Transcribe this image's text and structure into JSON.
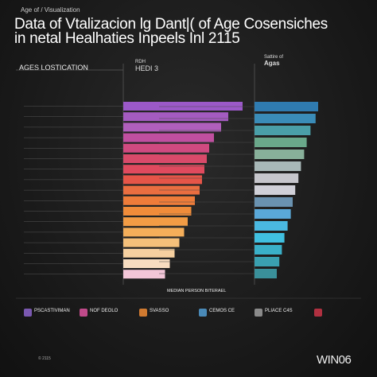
{
  "chart_data": {
    "type": "bar",
    "subtitle_small": "Age of / Visualization",
    "title_line1": "Data of Vtalizacion lg Dant|( of Age Cosensiches",
    "title_line2": "in netal Healhaties Inpeels Inl 2115",
    "left_header": "AGES  LOSTICATION",
    "mid_header_small": "RDH",
    "mid_header_title": "HEDI 3",
    "right_header_small": "Sattire of",
    "right_header_title": "Agas",
    "xlabel": "MEDIAN PERSON BITERAEL",
    "footer": "© 2115",
    "logo": "WIN06",
    "left_values": [
      100,
      88,
      82,
      76,
      72,
      70,
      68,
      66,
      64,
      60,
      57,
      54,
      51,
      47,
      43,
      39,
      35
    ],
    "right_values": [
      100,
      96,
      88,
      82,
      78,
      73,
      69,
      64,
      60,
      57,
      52,
      47,
      43,
      39,
      35
    ],
    "left_colors": [
      "#9b59c8",
      "#a45bc0",
      "#b05fbc",
      "#c04fa0",
      "#d04a80",
      "#d94a6a",
      "#e04a5e",
      "#e65548",
      "#ea6e40",
      "#ee7c3a",
      "#f08c3a",
      "#f29c45",
      "#f4ae5a",
      "#f5c07a",
      "#f6d0a0",
      "#f7dcc0",
      "#f3c6d8"
    ],
    "right_colors": [
      "#2f7bb0",
      "#3a8cb8",
      "#4a9fa8",
      "#6aa88a",
      "#88b09a",
      "#a8b8b8",
      "#c6c6cc",
      "#d0d0d8",
      "#6a92b0",
      "#5aa8d8",
      "#4ab8e0",
      "#40c0e0",
      "#3ab0c8",
      "#3aa0b0",
      "#3a909a"
    ],
    "legend": [
      {
        "title": "",
        "label": "PSCASTIVIMAN",
        "color": "#7a58b0"
      },
      {
        "title": "",
        "label": "NOF DEOLO",
        "color": "#c04a8a"
      },
      {
        "title": "",
        "label": "SVASSO",
        "color": "#d07a30"
      },
      {
        "title": "",
        "label": "CEMOS CE",
        "color": "#4a8ab8"
      },
      {
        "title": "",
        "label": "PLIACE C4S",
        "color": "#8a8a8a"
      },
      {
        "title": "",
        "label": "",
        "color": "#b03040"
      }
    ]
  }
}
